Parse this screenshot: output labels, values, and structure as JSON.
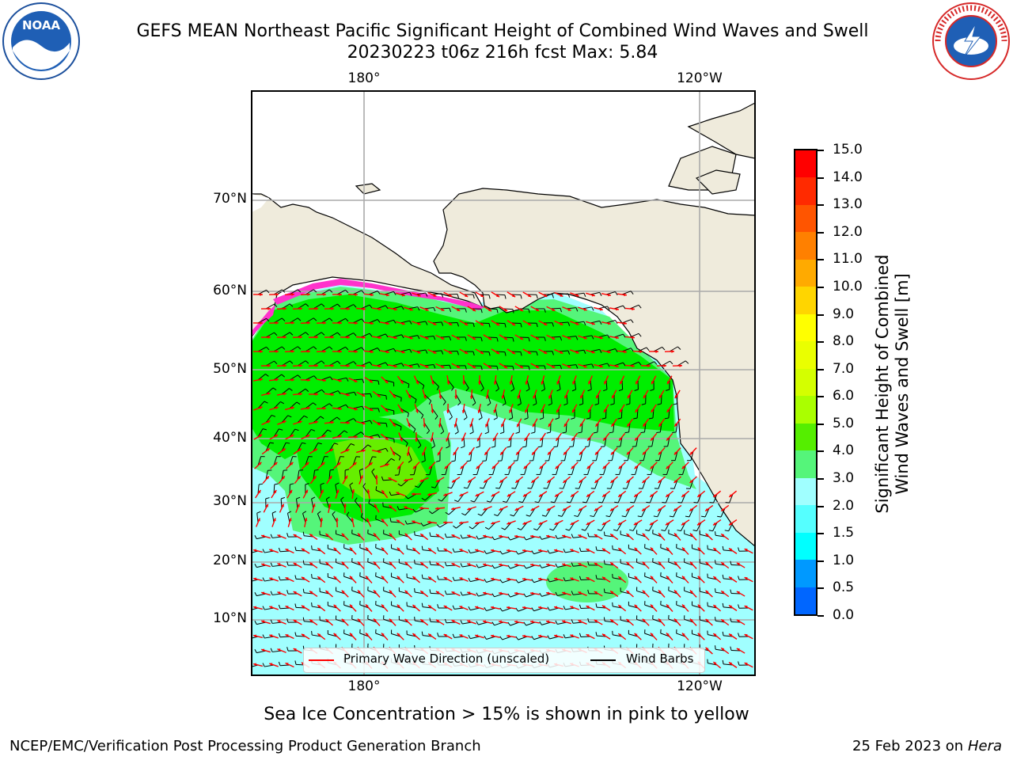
{
  "title_line1": "GEFS MEAN Northeast Pacific Significant Height of Combined Wind Waves and Swell",
  "title_line2": "20230223 t06z 216h fcst   Max: 5.84",
  "logos": {
    "left": "NOAA",
    "right": "NATIONAL WEATHER SERVICE"
  },
  "map": {
    "lon_labels_top": [
      "180°",
      "120°W"
    ],
    "lon_labels_bottom": [
      "180°",
      "120°W"
    ],
    "lat_labels": [
      "70°N",
      "60°N",
      "50°N",
      "40°N",
      "30°N",
      "20°N",
      "10°N"
    ],
    "land_color": "#efebdc",
    "ocean_color": "#ffffff"
  },
  "colorbar": {
    "title_line1": "Significant Height of Combined",
    "title_line2": "Wind Waves and Swell [m]",
    "tick_labels": [
      "15.0",
      "14.0",
      "13.0",
      "12.0",
      "11.0",
      "10.0",
      "9.0",
      "8.0",
      "7.0",
      "6.0",
      "5.0",
      "4.0",
      "3.0",
      "2.0",
      "1.5",
      "1.0",
      "0.5",
      "0.0"
    ],
    "colors": [
      "#ff0000",
      "#ff2a00",
      "#ff5500",
      "#ff8000",
      "#ffaa00",
      "#ffd500",
      "#ffff00",
      "#eaff00",
      "#d4ff00",
      "#aaff00",
      "#55ee00",
      "#00ee00",
      "#55f57a",
      "#a0ffff",
      "#55ffff",
      "#00ffff",
      "#0099ff",
      "#0066ff",
      "#0000ff"
    ]
  },
  "legend": {
    "wave_label": "Primary Wave Direction (unscaled)",
    "wave_color": "#ff0000",
    "barb_label": "Wind Barbs",
    "barb_color": "#000000"
  },
  "sea_ice_note": "Sea Ice Concentration > 15% is shown in pink to yellow",
  "footer_left": "NCEP/EMC/Verification Post Processing Product Generation Branch",
  "footer_right_date": "25 Feb 2023 on",
  "footer_right_machine": "Hera"
}
